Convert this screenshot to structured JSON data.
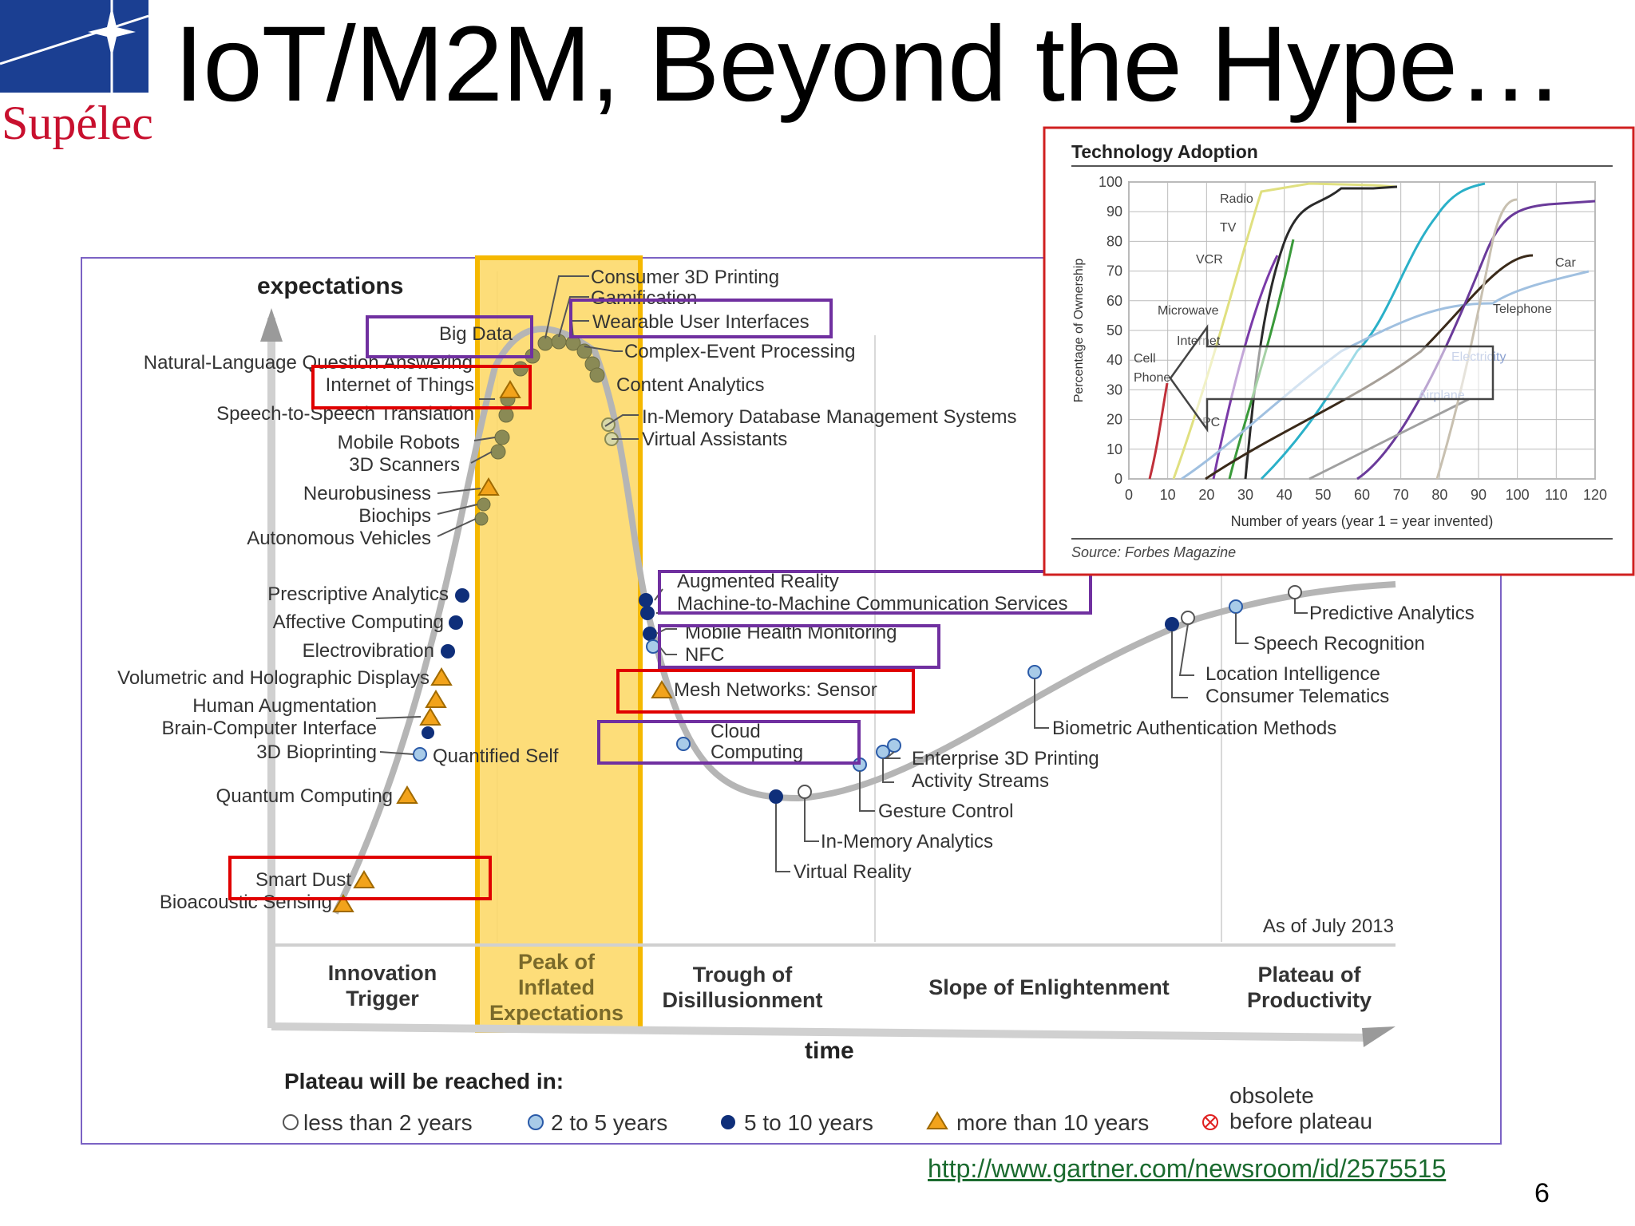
{
  "slide": {
    "logo_text": "Supélec",
    "title": "IoT/M2M, Beyond the Hype…",
    "url": "http://www.gartner.com/newsroom/id/2575515",
    "page_number": "6"
  },
  "hype": {
    "y_label": "expectations",
    "x_label": "time",
    "as_of": "As of July 2013",
    "phases": [
      {
        "line1": "Innovation",
        "line2": "Trigger",
        "line3": ""
      },
      {
        "line1": "Peak of",
        "line2": "Inflated",
        "line3": "Expectations"
      },
      {
        "line1": "Trough of",
        "line2": "Disillusionment",
        "line3": ""
      },
      {
        "line1": "Slope of Enlightenment",
        "line2": "",
        "line3": ""
      },
      {
        "line1": "Plateau of",
        "line2": "Productivity",
        "line3": ""
      }
    ],
    "legend": {
      "title": "Plateau will be reached in:",
      "items": [
        "less than 2 years",
        "2 to 5 years",
        "5 to 10 years",
        "more than 10 years"
      ],
      "obsolete_line1": "obsolete",
      "obsolete_line2": "before plateau"
    },
    "labels": [
      "Consumer 3D Printing",
      "Gamification",
      "Wearable User Interfaces",
      "Complex-Event Processing",
      "Big Data",
      "Content Analytics",
      "In-Memory Database Management Systems",
      "Virtual Assistants",
      "Natural-Language Question Answering",
      "Internet of Things",
      "Speech-to-Speech Translation",
      "Mobile Robots",
      "3D Scanners",
      "Neurobusiness",
      "Biochips",
      "Autonomous Vehicles",
      "Prescriptive Analytics",
      "Affective Computing",
      "Electrovibration",
      "Volumetric and Holographic Displays",
      "Human Augmentation",
      "Brain-Computer Interface",
      "3D Bioprinting",
      "Quantified Self",
      "Quantum Computing",
      "Smart Dust",
      "Bioacoustic Sensing",
      "Augmented Reality",
      "Machine-to-Machine Communication Services",
      "Mobile Health Monitoring",
      "NFC",
      "Mesh Networks: Sensor",
      "Cloud",
      "Computing",
      "Virtual Reality",
      "In-Memory Analytics",
      "Gesture Control",
      "Activity Streams",
      "Enterprise 3D Printing",
      "Biometric Authentication Methods",
      "Consumer Telematics",
      "Location Intelligence",
      "Speech Recognition",
      "Predictive Analytics"
    ]
  },
  "adoption": {
    "title": "Technology Adoption",
    "y_label": "Percentage of Ownership",
    "x_label": "Number of years (year 1 = year invented)",
    "source": "Source: Forbes Magazine",
    "y_ticks": [
      "100",
      "90",
      "80",
      "70",
      "60",
      "50",
      "40",
      "30",
      "20",
      "10",
      "0"
    ],
    "x_ticks": [
      "0",
      "10",
      "20",
      "30",
      "40",
      "50",
      "60",
      "70",
      "80",
      "90",
      "100",
      "110",
      "120"
    ],
    "series_labels": [
      "Radio",
      "TV",
      "VCR",
      "Microwave",
      "Internet",
      "Cell",
      "Phone",
      "PC",
      "Car",
      "Telephone",
      "Electricity",
      "Airplane"
    ]
  },
  "colors": {
    "highlight_yellow": "#fdd867",
    "highlight_border": "#f5b800",
    "purple_box": "#7030a0",
    "red_box": "#e00000",
    "orange_box": "#ff6a00",
    "marker_orange": "#f2a31b",
    "marker_navy": "#0f2f7a",
    "marker_light": "#a8cbe8"
  }
}
